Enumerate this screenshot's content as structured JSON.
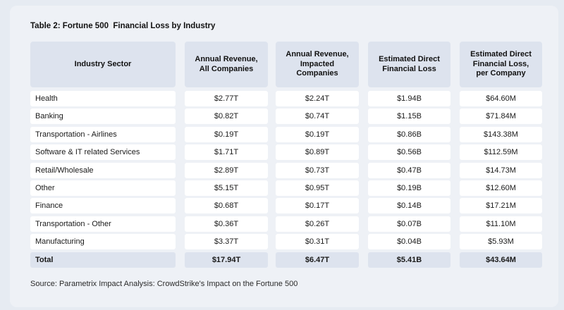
{
  "table": {
    "title": "Table 2: Fortune 500  Financial Loss by Industry",
    "headers": [
      "Industry Sector",
      "Annual Revenue,\nAll Companies",
      "Annual Revenue,\nImpacted\nCompanies",
      "Estimated Direct\nFinancial Loss",
      "Estimated Direct\nFinancial Loss,\nper Company"
    ],
    "rows": [
      [
        "Health",
        "$2.77T",
        "$2.24T",
        "$1.94B",
        "$64.60M"
      ],
      [
        "Banking",
        "$0.82T",
        "$0.74T",
        "$1.15B",
        "$71.84M"
      ],
      [
        "Transportation - Airlines",
        "$0.19T",
        "$0.19T",
        "$0.86B",
        "$143.38M"
      ],
      [
        "Software & IT related Services",
        "$1.71T",
        "$0.89T",
        "$0.56B",
        "$112.59M"
      ],
      [
        "Retail/Wholesale",
        "$2.89T",
        "$0.73T",
        "$0.47B",
        "$14.73M"
      ],
      [
        "Other",
        "$5.15T",
        "$0.95T",
        "$0.19B",
        "$12.60M"
      ],
      [
        "Finance",
        "$0.68T",
        "$0.17T",
        "$0.14B",
        "$17.21M"
      ],
      [
        "Transportation - Other",
        "$0.36T",
        "$0.26T",
        "$0.07B",
        "$11.10M"
      ],
      [
        "Manufacturing",
        "$3.37T",
        "$0.31T",
        "$0.04B",
        "$5.93M"
      ]
    ],
    "total": [
      "Total",
      "$17.94T",
      "$6.47T",
      "$5.41B",
      "$43.64M"
    ],
    "source": "Source: Parametrix Impact Analysis: CrowdStrike's Impact on the Fortune 500"
  },
  "colors": {
    "page_background": "#e6ebf2",
    "card_background": "#eef1f6",
    "header_fill": "#dde3ee",
    "cell_fill": "#ffffff"
  }
}
